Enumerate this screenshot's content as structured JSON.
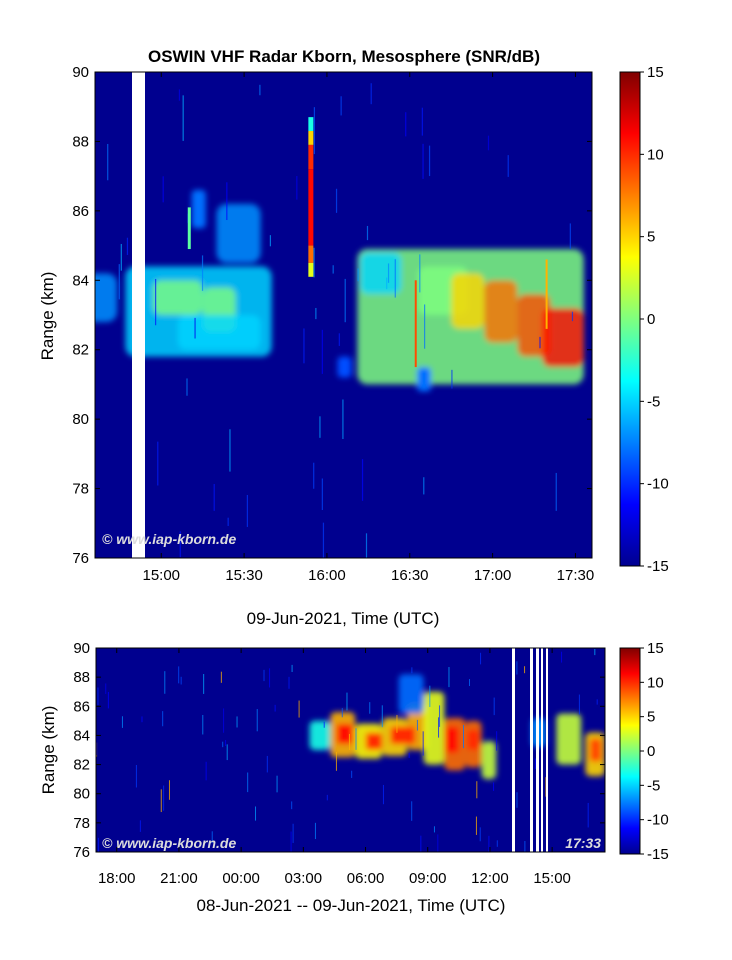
{
  "chart_data": [
    {
      "type": "heatmap",
      "title": "OSWIN VHF Radar Kborn, Mesosphere (SNR/dB)",
      "xlabel": "09-Jun-2021, Time (UTC)",
      "ylabel": "Range (km)",
      "x_ticks": [
        "15:00",
        "15:30",
        "16:00",
        "16:30",
        "17:00",
        "17:30"
      ],
      "y_ticks": [
        "76",
        "78",
        "80",
        "82",
        "84",
        "86",
        "88",
        "90"
      ],
      "ylim": [
        76,
        90
      ],
      "colorbar_ticks": [
        "15",
        "10",
        "5",
        "0",
        "-5",
        "-10",
        "-15"
      ],
      "colorbar_range": [
        -15,
        15
      ],
      "watermark": "© www.iap-kborn.de",
      "echo_layers": [
        {
          "t_start": "14:30",
          "t_end": "14:44",
          "range_km": [
            82.8,
            84.2
          ],
          "snr_db": -4
        },
        {
          "t_start": "14:47",
          "t_end": "15:40",
          "range_km": [
            81.8,
            84.4
          ],
          "snr_db": -2
        },
        {
          "t_start": "15:20",
          "t_end": "15:36",
          "range_km": [
            84.5,
            86.2
          ],
          "snr_db": -4
        },
        {
          "t_start": "16:11",
          "t_end": "17:33",
          "range_km": [
            81.0,
            84.9
          ],
          "snr_db": 3
        }
      ]
    },
    {
      "type": "heatmap",
      "xlabel": "08-Jun-2021 -- 09-Jun-2021, Time (UTC)",
      "ylabel": "Range (km)",
      "x_ticks": [
        "18:00",
        "21:00",
        "00:00",
        "03:00",
        "06:00",
        "09:00",
        "12:00",
        "15:00"
      ],
      "y_ticks": [
        "76",
        "78",
        "80",
        "82",
        "84",
        "86",
        "88",
        "90"
      ],
      "ylim": [
        76,
        90
      ],
      "colorbar_ticks": [
        "15",
        "10",
        "5",
        "0",
        "-5",
        "-10",
        "-15"
      ],
      "colorbar_range": [
        -15,
        15
      ],
      "watermark": "© www.iap-kborn.de",
      "time_label": "17:33"
    }
  ]
}
